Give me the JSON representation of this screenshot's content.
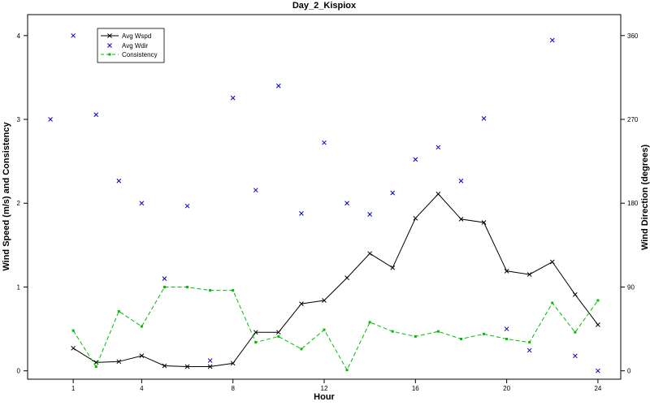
{
  "chart_data": {
    "type": "line",
    "title": "Day_2_Kispiox",
    "xlabel": "Hour",
    "ylabel_left": "Wind Speed (m/s) and Consistency",
    "ylabel_right": "Wind Direction (degrees)",
    "xlim": [
      -1,
      25
    ],
    "ylim_left": [
      -0.1,
      4.25
    ],
    "ylim_right": [
      -9,
      382.5
    ],
    "x_ticks": [
      1,
      4,
      8,
      12,
      16,
      20,
      24
    ],
    "y_ticks_left": [
      0,
      1,
      2,
      3,
      4
    ],
    "y_ticks_right": [
      0,
      90,
      180,
      270,
      360
    ],
    "legend_position": "top-left",
    "series": [
      {
        "name": "Avg Wspd",
        "axis": "left",
        "style": "line-x-markers",
        "color": "#000000",
        "x": [
          1,
          2,
          3,
          4,
          5,
          6,
          7,
          8,
          9,
          10,
          11,
          12,
          13,
          14,
          15,
          16,
          17,
          18,
          19,
          20,
          21,
          22,
          23,
          24
        ],
        "y": [
          0.27,
          0.1,
          0.11,
          0.18,
          0.06,
          0.05,
          0.05,
          0.09,
          0.46,
          0.46,
          0.8,
          0.84,
          1.11,
          1.4,
          1.23,
          1.82,
          2.11,
          1.81,
          1.77,
          1.19,
          1.15,
          1.3,
          0.91,
          0.55
        ]
      },
      {
        "name": "Avg Wdir",
        "axis": "right",
        "style": "scatter-x",
        "color": "#0000cc",
        "x": [
          0,
          1,
          2,
          3,
          4,
          5,
          6,
          7,
          8,
          9,
          10,
          11,
          12,
          13,
          14,
          15,
          16,
          17,
          18,
          19,
          20,
          21,
          22,
          23,
          24
        ],
        "y": [
          270,
          360,
          275,
          204,
          180,
          99,
          177,
          11,
          293,
          194,
          306,
          169,
          245,
          180,
          168,
          191,
          227,
          240,
          204,
          271,
          45,
          22,
          355,
          16,
          0
        ]
      },
      {
        "name": "Consistency",
        "axis": "left",
        "style": "dashed-line-square-markers",
        "color": "#00bb00",
        "x": [
          1,
          2,
          3,
          4,
          5,
          6,
          7,
          8,
          9,
          10,
          11,
          12,
          13,
          14,
          15,
          16,
          17,
          18,
          19,
          20,
          21,
          22,
          23,
          24
        ],
        "y": [
          0.48,
          0.05,
          0.71,
          0.53,
          1.0,
          1.0,
          0.96,
          0.96,
          0.34,
          0.41,
          0.26,
          0.49,
          0.01,
          0.58,
          0.47,
          0.41,
          0.47,
          0.38,
          0.44,
          0.38,
          0.34,
          0.81,
          0.46,
          0.84
        ]
      }
    ]
  }
}
